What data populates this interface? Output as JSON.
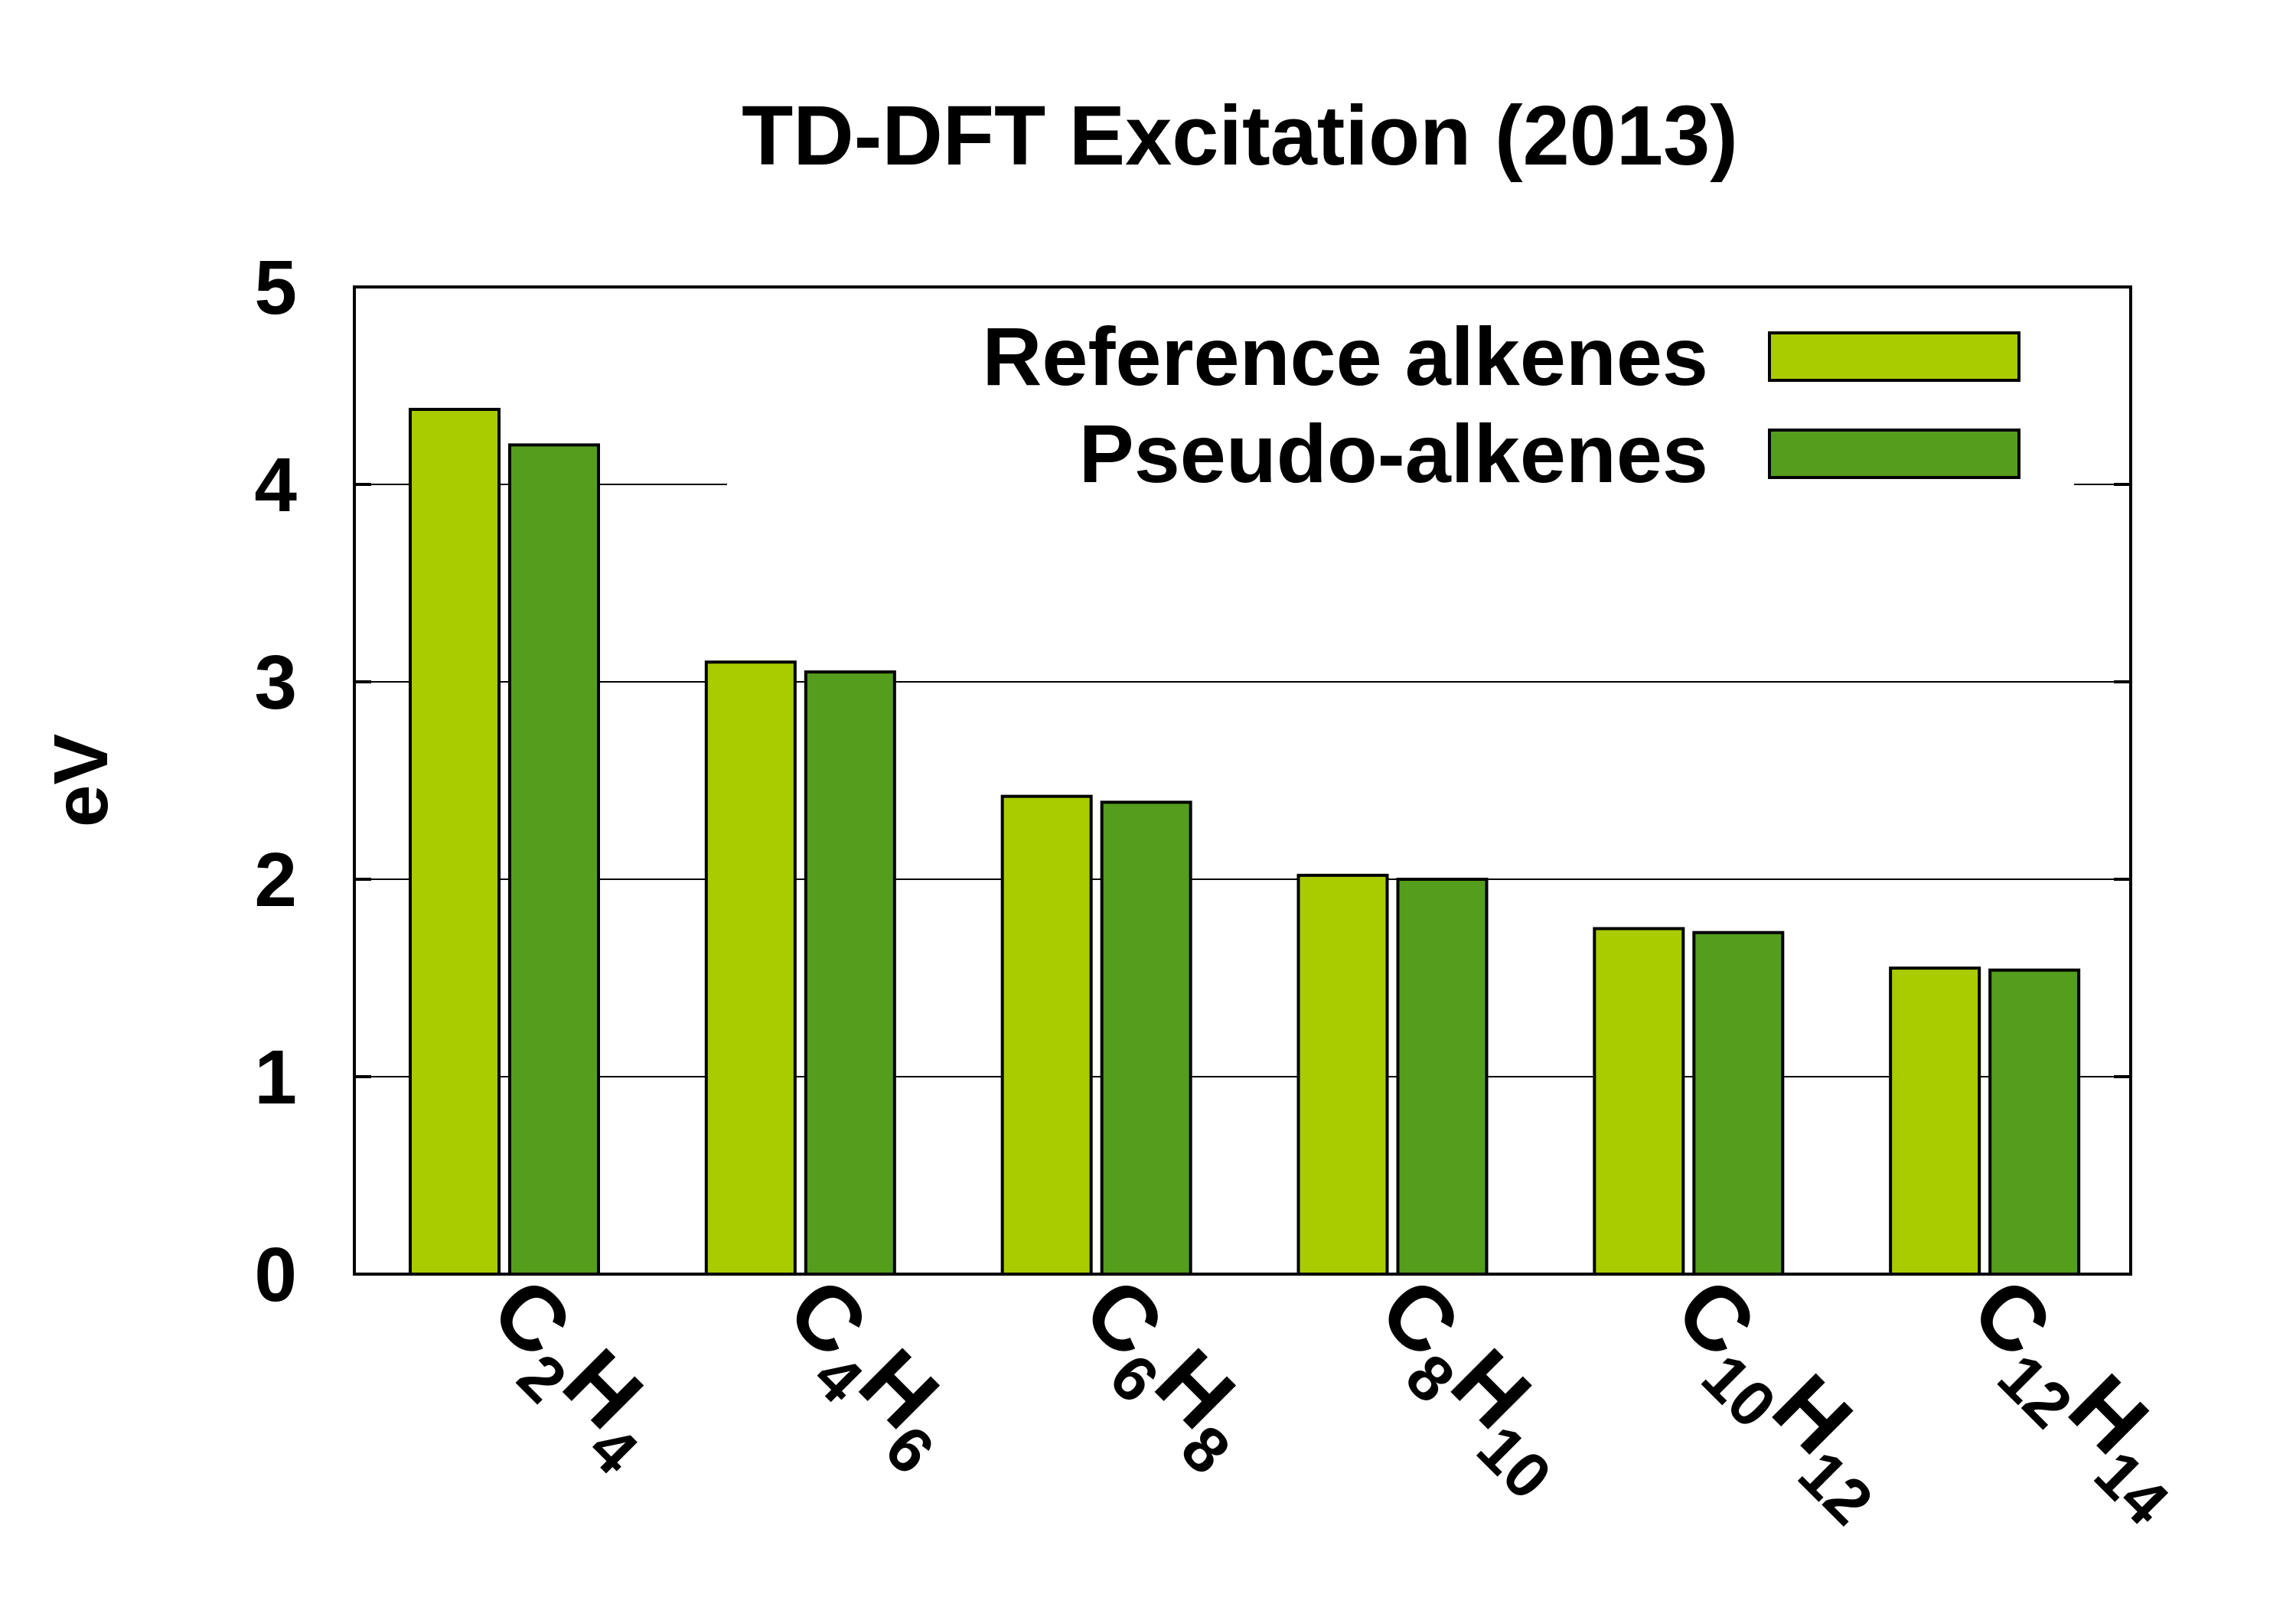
{
  "chart_data": {
    "type": "bar",
    "title": "TD-DFT Excitation (2013)",
    "ylabel": "eV",
    "xlabel": "",
    "ylim": [
      0,
      5
    ],
    "yticks": [
      0,
      1,
      2,
      3,
      4,
      5
    ],
    "grid": true,
    "legend_position": "top-right",
    "categories": [
      {
        "main": "C",
        "sub1": "2",
        "mid": "H",
        "sub2": "4"
      },
      {
        "main": "C",
        "sub1": "4",
        "mid": "H",
        "sub2": "6"
      },
      {
        "main": "C",
        "sub1": "6",
        "mid": "H",
        "sub2": "8"
      },
      {
        "main": "C",
        "sub1": "8",
        "mid": "H",
        "sub2": "10"
      },
      {
        "main": "C",
        "sub1": "10",
        "mid": "H",
        "sub2": "12"
      },
      {
        "main": "C",
        "sub1": "12",
        "mid": "H",
        "sub2": "14"
      }
    ],
    "series": [
      {
        "name": "Reference alkenes",
        "color": "#a8cc00",
        "values": [
          4.38,
          3.1,
          2.42,
          2.02,
          1.75,
          1.55
        ]
      },
      {
        "name": "Pseudo-alkenes",
        "color": "#559d1d",
        "values": [
          4.2,
          3.05,
          2.39,
          2.0,
          1.73,
          1.54
        ]
      }
    ]
  }
}
